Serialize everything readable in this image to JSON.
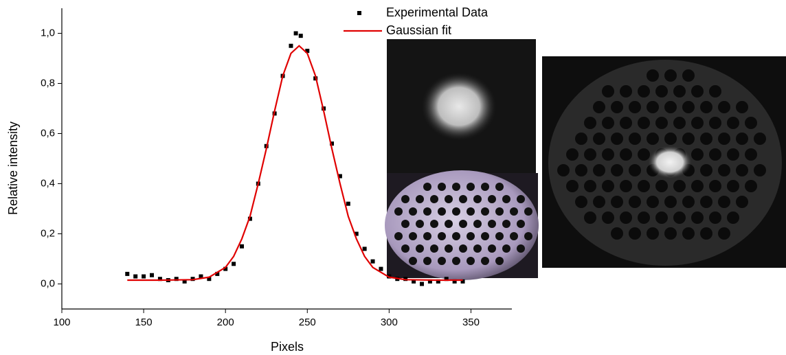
{
  "chart_data": {
    "type": "scatter-line",
    "x_label": "Pixels",
    "y_label": "Relative intensity",
    "xlim": [
      100,
      375
    ],
    "xticks": [
      100,
      150,
      200,
      250,
      300,
      350
    ],
    "ylim": [
      -0.1,
      1.1
    ],
    "yticks": [
      {
        "value": 0,
        "label": "0,0"
      },
      {
        "value": 0.2,
        "label": "0,2"
      },
      {
        "value": 0.4,
        "label": "0,4"
      },
      {
        "value": 0.6,
        "label": "0,6"
      },
      {
        "value": 0.8,
        "label": "0,8"
      },
      {
        "value": 1.0,
        "label": "1,0"
      }
    ],
    "series": [
      {
        "name": "Experimental Data",
        "color": "#000000",
        "style": "markers",
        "x": [
          140,
          145,
          150,
          155,
          160,
          165,
          170,
          175,
          180,
          185,
          190,
          195,
          200,
          205,
          210,
          215,
          220,
          225,
          230,
          235,
          240,
          243,
          246,
          250,
          255,
          260,
          265,
          270,
          275,
          280,
          285,
          290,
          295,
          300,
          305,
          310,
          315,
          320,
          325,
          330,
          335,
          340,
          345
        ],
        "values": [
          0.04,
          0.03,
          0.03,
          0.035,
          0.02,
          0.015,
          0.02,
          0.01,
          0.02,
          0.03,
          0.02,
          0.04,
          0.06,
          0.08,
          0.15,
          0.26,
          0.4,
          0.55,
          0.68,
          0.83,
          0.95,
          1.0,
          0.99,
          0.93,
          0.82,
          0.7,
          0.56,
          0.43,
          0.32,
          0.2,
          0.14,
          0.09,
          0.06,
          0.03,
          0.02,
          0.02,
          0.01,
          0.0,
          0.01,
          0.01,
          0.02,
          0.01,
          0.01
        ]
      },
      {
        "name": "Gaussian fit",
        "color": "#e00000",
        "style": "line",
        "x": [
          140,
          160,
          180,
          190,
          200,
          205,
          210,
          215,
          220,
          225,
          230,
          235,
          240,
          245,
          250,
          255,
          260,
          265,
          270,
          275,
          280,
          285,
          290,
          300,
          310,
          330,
          345
        ],
        "values": [
          0.015,
          0.015,
          0.017,
          0.027,
          0.066,
          0.11,
          0.18,
          0.27,
          0.4,
          0.54,
          0.69,
          0.83,
          0.92,
          0.95,
          0.92,
          0.83,
          0.69,
          0.54,
          0.4,
          0.27,
          0.18,
          0.11,
          0.066,
          0.027,
          0.017,
          0.015,
          0.015
        ]
      }
    ]
  }
}
